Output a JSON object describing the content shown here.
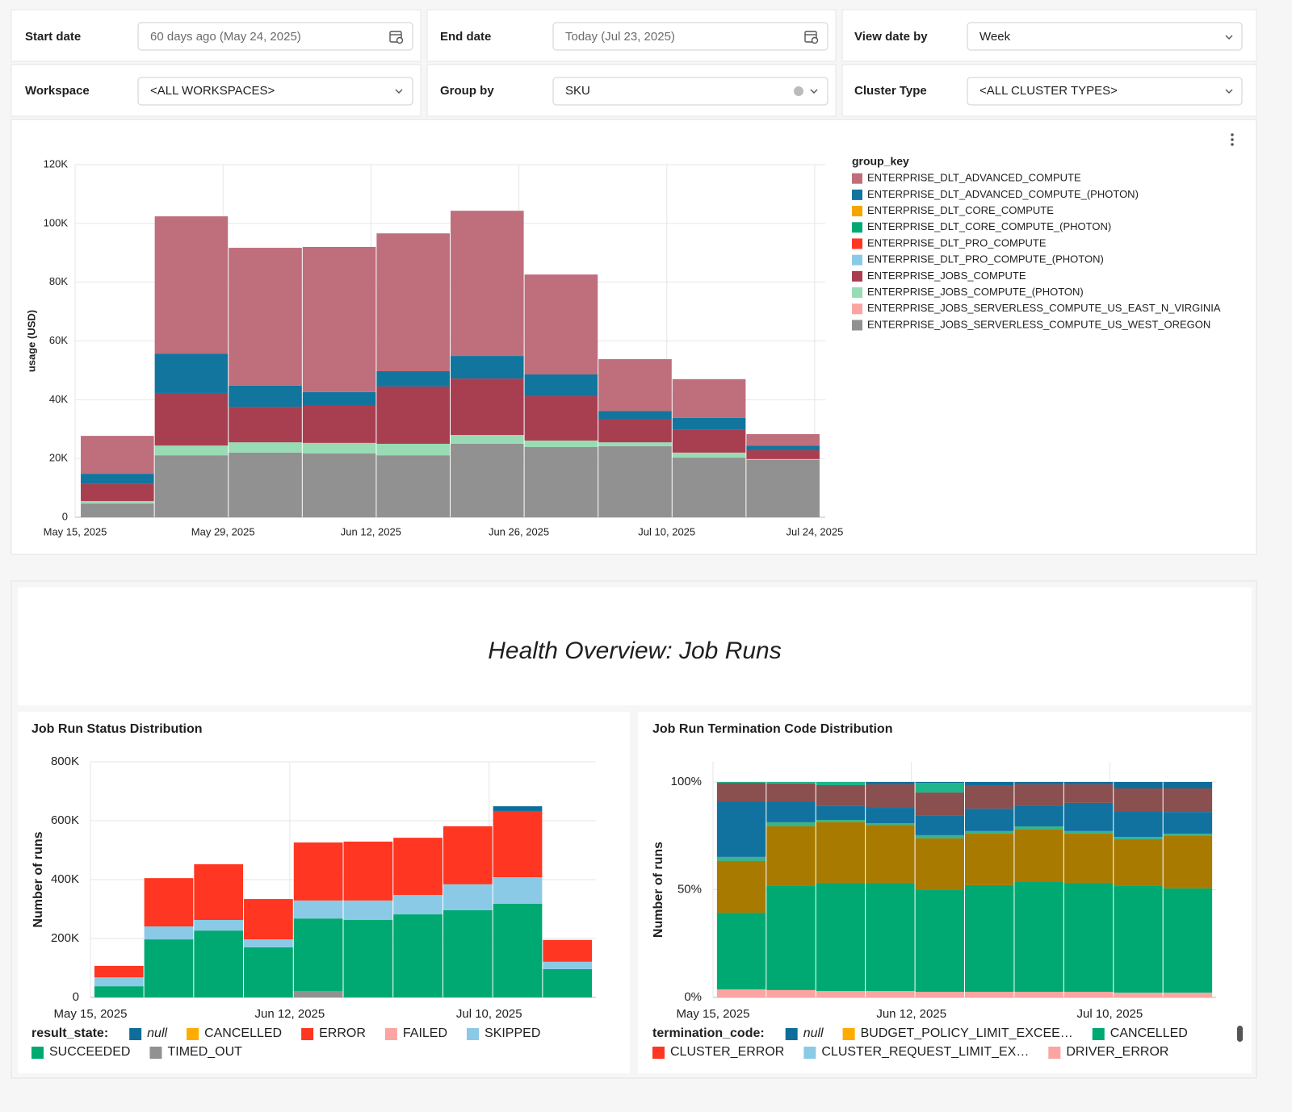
{
  "filters": [
    {
      "label": "Start date",
      "value": "60 days ago (May 24, 2025)"
    },
    {
      "label": "End date",
      "value": "Today (Jul 23, 2025)"
    },
    {
      "label": "View date by",
      "value": "Week"
    },
    {
      "label": "Workspace",
      "value": "<ALL WORKSPACES>"
    },
    {
      "label": "Group by",
      "value": "SKU"
    },
    {
      "label": "Cluster Type",
      "value": "<ALL CLUSTER TYPES>"
    }
  ],
  "section_title": "Health Overview: Job Runs",
  "chart_data": [
    {
      "type": "bar",
      "stacked": true,
      "grid": true,
      "y_label": "usage (USD)",
      "legend_title": "group_key",
      "x": [
        "2025-05-19",
        "2025-05-26",
        "2025-06-02",
        "2025-06-09",
        "2025-06-16",
        "2025-06-23",
        "2025-06-30",
        "2025-07-07",
        "2025-07-14",
        "2025-07-21"
      ],
      "xlim": [
        "2025-05-15",
        "2025-07-25"
      ],
      "xticks": [
        {
          "value": "2025-05-15",
          "label": "May 15, 2025"
        },
        {
          "value": "2025-05-29",
          "label": "May 29, 2025"
        },
        {
          "value": "2025-06-12",
          "label": "Jun 12, 2025"
        },
        {
          "value": "2025-06-26",
          "label": "Jun 26, 2025"
        },
        {
          "value": "2025-07-10",
          "label": "Jul 10, 2025"
        },
        {
          "value": "2025-07-24",
          "label": "Jul 24, 2025"
        }
      ],
      "ylim": [
        0,
        120000
      ],
      "yticks": [
        0,
        {
          "value": 20000,
          "label": "20K"
        },
        {
          "value": 40000,
          "label": "40K"
        },
        {
          "value": 60000,
          "label": "60K"
        },
        {
          "value": 80000,
          "label": "80K"
        },
        {
          "value": 100000,
          "label": "100K"
        },
        {
          "value": 120000,
          "label": "120K"
        }
      ],
      "series": [
        {
          "name": "ENTERPRISE_DLT_ADVANCED_COMPUTE",
          "color": "#bf6e7c",
          "values": [
            12900,
            46700,
            46900,
            49400,
            46900,
            49400,
            34000,
            17600,
            13200,
            3900
          ]
        },
        {
          "name": "ENTERPRISE_DLT_ADVANCED_COMPUTE_(PHOTON)",
          "color": "#11759e",
          "values": [
            3500,
            13400,
            7200,
            4700,
            5200,
            7700,
            7400,
            2700,
            3900,
            1600
          ]
        },
        {
          "name": "ENTERPRISE_DLT_CORE_COMPUTE",
          "color": "#f5a500",
          "values": [
            0,
            0,
            0,
            0,
            0,
            0,
            0,
            0,
            0,
            0
          ]
        },
        {
          "name": "ENTERPRISE_DLT_CORE_COMPUTE_(PHOTON)",
          "color": "#00a972",
          "values": [
            0,
            0,
            0,
            0,
            0,
            0,
            0,
            0,
            0,
            0
          ]
        },
        {
          "name": "ENTERPRISE_DLT_PRO_COMPUTE",
          "color": "#ff3621",
          "values": [
            0,
            0,
            0,
            0,
            0,
            0,
            0,
            0,
            0,
            0
          ]
        },
        {
          "name": "ENTERPRISE_DLT_PRO_COMPUTE_(PHOTON)",
          "color": "#8bcae7",
          "values": [
            0,
            0,
            0,
            0,
            0,
            0,
            0,
            0,
            0,
            0
          ]
        },
        {
          "name": "ENTERPRISE_JOBS_COMPUTE",
          "color": "#a83f51",
          "values": [
            5800,
            17900,
            12100,
            12600,
            19500,
            19200,
            15100,
            8000,
            7900,
            3000
          ]
        },
        {
          "name": "ENTERPRISE_JOBS_COMPUTE_(PHOTON)",
          "color": "#98dbb4",
          "values": [
            800,
            3300,
            3500,
            3600,
            3900,
            3000,
            2200,
            1300,
            1700,
            300
          ]
        },
        {
          "name": "ENTERPRISE_JOBS_SERVERLESS_COMPUTE_US_EAST_N_VIRGINIA",
          "color": "#fca4a1",
          "values": [
            0,
            0,
            0,
            0,
            0,
            0,
            0,
            0,
            0,
            0
          ]
        },
        {
          "name": "ENTERPRISE_JOBS_SERVERLESS_COMPUTE_US_WEST_OREGON",
          "color": "#919191",
          "values": [
            4700,
            21100,
            22000,
            21700,
            21100,
            25000,
            23900,
            24200,
            20300,
            19500
          ]
        }
      ]
    },
    {
      "type": "bar",
      "stacked": true,
      "grid": true,
      "title": "Job Run Status Distribution",
      "y_label": "Number of runs",
      "legend_title": "result_state:",
      "x": [
        "2025-05-19",
        "2025-05-26",
        "2025-06-02",
        "2025-06-09",
        "2025-06-16",
        "2025-06-23",
        "2025-06-30",
        "2025-07-07",
        "2025-07-14",
        "2025-07-21"
      ],
      "xlim": [
        "2025-05-15",
        "2025-07-25"
      ],
      "xticks": [
        {
          "value": "2025-05-15",
          "label": "May 15, 2025"
        },
        {
          "value": "2025-06-12",
          "label": "Jun 12, 2025"
        },
        {
          "value": "2025-07-10",
          "label": "Jul 10, 2025"
        }
      ],
      "ylim": [
        0,
        800000
      ],
      "yticks": [
        0,
        {
          "value": 200000,
          "label": "200K"
        },
        {
          "value": 400000,
          "label": "400K"
        },
        {
          "value": 600000,
          "label": "600K"
        },
        {
          "value": 800000,
          "label": "800K"
        }
      ],
      "series": [
        {
          "name": "null",
          "color": "#0f6e99",
          "values": [
            0,
            0,
            0,
            0,
            0,
            0,
            0,
            0,
            16000,
            0
          ]
        },
        {
          "name": "CANCELLED",
          "color": "#ffab00",
          "values": [
            0,
            0,
            0,
            0,
            0,
            0,
            0,
            0,
            0,
            0
          ]
        },
        {
          "name": "ERROR",
          "color": "#ff3621",
          "values": [
            39000,
            164000,
            189000,
            137000,
            197000,
            200000,
            194000,
            197000,
            225000,
            74000
          ]
        },
        {
          "name": "FAILED",
          "color": "#fca4a1",
          "values": [
            0,
            0,
            0,
            0,
            0,
            0,
            0,
            0,
            0,
            0
          ]
        },
        {
          "name": "SKIPPED",
          "color": "#8bcae7",
          "values": [
            30000,
            44000,
            36000,
            27000,
            61000,
            66000,
            66000,
            88000,
            90000,
            25000
          ]
        },
        {
          "name": "SUCCEEDED",
          "color": "#00a972",
          "values": [
            38000,
            197000,
            227000,
            170000,
            246000,
            263000,
            282000,
            296000,
            318000,
            96000
          ]
        },
        {
          "name": "TIMED_OUT",
          "color": "#919191",
          "values": [
            0,
            0,
            0,
            0,
            22000,
            0,
            0,
            0,
            0,
            0
          ]
        }
      ]
    },
    {
      "type": "bar",
      "stacked": true,
      "grid": true,
      "title": "Job Run Termination Code Distribution",
      "y_label": "Number of runs",
      "legend_title": "termination_code:",
      "x": [
        "2025-05-19",
        "2025-05-26",
        "2025-06-02",
        "2025-06-09",
        "2025-06-16",
        "2025-06-23",
        "2025-06-30",
        "2025-07-07",
        "2025-07-14",
        "2025-07-21"
      ],
      "xlim": [
        "2025-05-15",
        "2025-07-25"
      ],
      "xticks": [
        {
          "value": "2025-05-15",
          "label": "May 15, 2025"
        },
        {
          "value": "2025-06-12",
          "label": "Jun 12, 2025"
        },
        {
          "value": "2025-07-10",
          "label": "Jul 10, 2025"
        }
      ],
      "ylim": [
        0,
        100
      ],
      "yticks": [
        {
          "value": 0,
          "label": "0%"
        },
        {
          "value": 50,
          "label": "50%"
        },
        {
          "value": 100,
          "label": "100%"
        }
      ],
      "series": [
        {
          "name": "null",
          "color": "#0f6e99",
          "values": [
            0,
            0,
            0,
            1.1,
            0.4,
            1.5,
            1.1,
            1.1,
            3.0,
            3.0
          ]
        },
        {
          "name": "BUDGET_POLICY_LIMIT_EXCEE…",
          "color": "#ffab00",
          "values": [
            0,
            0,
            0,
            0,
            0,
            0,
            0,
            0,
            0,
            0
          ]
        },
        {
          "name": "CANCELLED",
          "color": "#00a972",
          "values": [
            35.6,
            48.3,
            50.2,
            50.2,
            47.2,
            49.5,
            51.3,
            50.6,
            49.5,
            48.4
          ]
        },
        {
          "name": "CLUSTER_ERROR",
          "color": "#ff3621",
          "values": [
            0,
            0,
            0,
            0,
            0,
            0,
            0,
            0,
            0,
            0
          ]
        },
        {
          "name": "CLUSTER_REQUEST_LIMIT_EX…",
          "color": "#8bcae7",
          "values": [
            0,
            0,
            0,
            0,
            0,
            0,
            0,
            0,
            0,
            0
          ]
        },
        {
          "name": "DRIVER_ERROR",
          "color": "#fca4a1",
          "values": [
            3.7,
            3.4,
            3.0,
            3.0,
            2.6,
            2.6,
            2.6,
            2.6,
            2.2,
            2.2
          ]
        },
        {
          "color": "#8a4f4f",
          "values": [
            8.6,
            8.3,
            9.7,
            10.9,
            10.5,
            10.9,
            9.8,
            8.6,
            10.5,
            10.9
          ]
        },
        {
          "color": "#11729f",
          "values": [
            25.8,
            9.7,
            6.4,
            7.1,
            9.3,
            10.4,
            9.7,
            13.1,
            12.0,
            10.1
          ]
        },
        {
          "color": "#3bb28a",
          "values": [
            1.9,
            1.9,
            1.1,
            0.8,
            1.5,
            1.2,
            1.5,
            1.2,
            1.1,
            1.1
          ]
        },
        {
          "color": "#a87a00",
          "values": [
            24.0,
            27.7,
            28.1,
            26.9,
            24.0,
            23.9,
            24.0,
            22.8,
            21.7,
            24.3
          ]
        },
        {
          "color": "#1fb58a",
          "values": [
            0.4,
            0.7,
            1.5,
            0,
            4.5,
            0,
            0,
            0,
            0,
            0
          ]
        }
      ]
    }
  ]
}
